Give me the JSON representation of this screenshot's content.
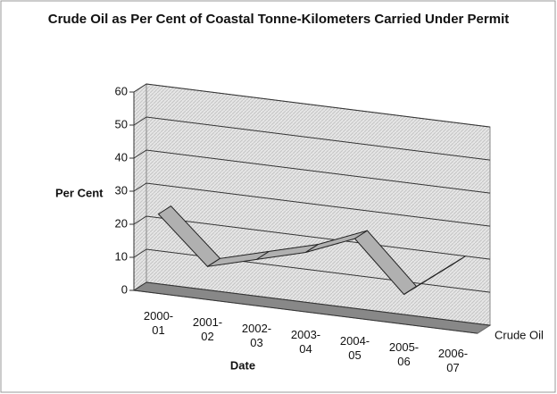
{
  "chart_data": {
    "type": "line",
    "title": "Crude Oil as Per Cent of Coastal Tonne-Kilometers Carried Under Permit",
    "x_label": "Date",
    "y_label": "Per Cent",
    "categories": [
      "2000-01",
      "2001-02",
      "2002-03",
      "2003-04",
      "2004-05",
      "2005-06",
      "2006-07"
    ],
    "series": [
      {
        "name": "Crude Oil",
        "color": "#b0b0b0",
        "values": [
          24,
          10,
          14,
          18,
          24,
          9,
          20
        ]
      }
    ],
    "ylim": [
      0,
      60
    ],
    "yticks": [
      0,
      10,
      20,
      30,
      40,
      50,
      60
    ],
    "grid": true
  }
}
